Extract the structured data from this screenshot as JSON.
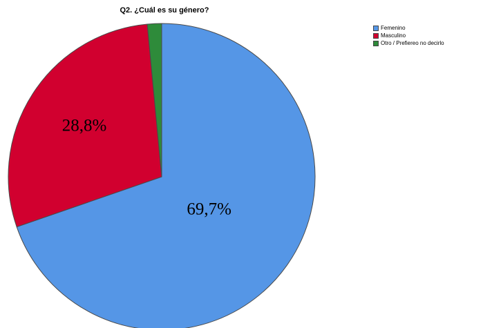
{
  "chart_data": {
    "type": "pie",
    "title": "Q2. ¿Cuál es su género?",
    "categories": [
      "Femenino",
      "Masculino",
      "Otro / Prefiereo no decirlo"
    ],
    "values": [
      69.7,
      28.8,
      1.5
    ],
    "data_labels": [
      "69,7%",
      "28,8%",
      ""
    ],
    "colors": [
      "#5596e6",
      "#d1002f",
      "#2e8b3a"
    ],
    "legend_placement": "top-right",
    "start_angle_deg": 0,
    "direction": "clockwise"
  }
}
